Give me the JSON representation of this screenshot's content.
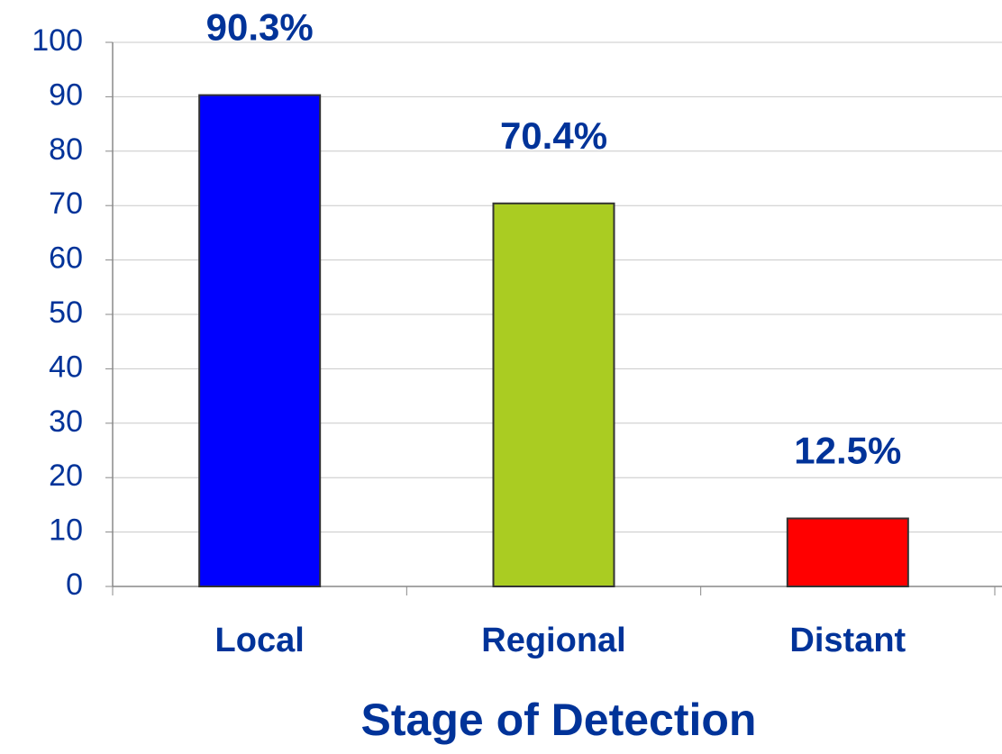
{
  "chart_data": {
    "type": "bar",
    "x_label": "Stage of Detection",
    "categories": [
      "Local",
      "Regional",
      "Distant"
    ],
    "values": [
      90.3,
      70.4,
      12.5
    ],
    "value_labels": [
      "90.3%",
      "70.4%",
      "12.5%"
    ],
    "colors": [
      "#0000ff",
      "#aacc22",
      "#ff0000"
    ],
    "ylim": [
      0,
      100
    ],
    "yticks": [
      0,
      10,
      20,
      30,
      40,
      50,
      60,
      70,
      80,
      90,
      100
    ],
    "grid": true
  }
}
